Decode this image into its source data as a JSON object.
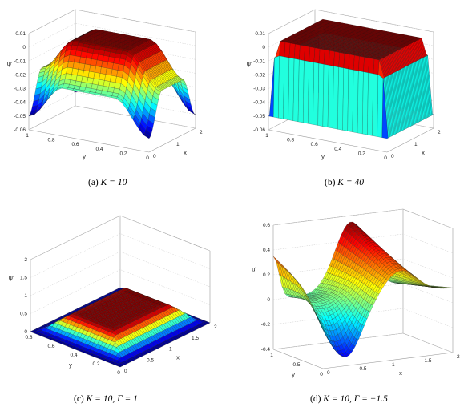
{
  "captions": {
    "a": {
      "label": "(a)",
      "math": "K = 10"
    },
    "b": {
      "label": "(b)",
      "math": "K = 40"
    },
    "c": {
      "label": "(c)",
      "math": "K = 10, Γ = 1"
    },
    "d": {
      "label": "(d)",
      "math": "K = 10, Γ = −1.5"
    }
  },
  "chart_data": [
    {
      "id": "a",
      "type": "surface3d",
      "zlabel": "ψ'",
      "xlabel": "x",
      "ylabel": "y",
      "xlim": [
        0,
        2
      ],
      "ylim": [
        0,
        1
      ],
      "zlim": [
        -0.06,
        0.01
      ],
      "zticks": [
        "0.01",
        "0",
        "-0.01",
        "-0.02",
        "-0.03",
        "-0.04",
        "-0.05",
        "-0.06"
      ],
      "yticks": [
        "1",
        "0.8",
        "0.6",
        "0.4",
        "0.2",
        "0"
      ],
      "xticks": [
        "0",
        "1",
        "2"
      ],
      "z_range_shown": [
        -0.05,
        0.005
      ]
    },
    {
      "id": "b",
      "type": "surface3d",
      "zlabel": "ψ'",
      "xlabel": "x",
      "ylabel": "y",
      "xlim": [
        0,
        2
      ],
      "ylim": [
        0,
        1
      ],
      "zlim": [
        -0.06,
        0.01
      ],
      "zticks": [
        "0.01",
        "0",
        "-0.01",
        "-0.02",
        "-0.03",
        "-0.04",
        "-0.05",
        "-0.06"
      ],
      "yticks": [
        "1",
        "0.8",
        "0.6",
        "0.4",
        "0.2",
        "0"
      ],
      "xticks": [
        "0",
        "1",
        "2"
      ],
      "z_range_shown": [
        -0.05,
        0.005
      ]
    },
    {
      "id": "c",
      "type": "surface3d",
      "zlabel": "ψ'",
      "xlabel": "x",
      "ylabel": "y",
      "xlim": [
        0,
        2
      ],
      "ylim": [
        0,
        1
      ],
      "zlim": [
        0,
        2
      ],
      "zticks": [
        "2",
        "1.5",
        "1",
        "0.5",
        "0"
      ],
      "yticks": [
        "0.8",
        "0.6",
        "0.4",
        "0.2",
        "0"
      ],
      "xticks": [
        "0",
        "0.5",
        "1",
        "1.5",
        "2"
      ],
      "z_range_shown": [
        0,
        0.5
      ]
    },
    {
      "id": "d",
      "type": "surface3d",
      "zlabel": "u'",
      "xlabel": "x",
      "ylabel": "y",
      "xlim": [
        0,
        2
      ],
      "ylim": [
        0,
        1
      ],
      "zlim": [
        -0.4,
        0.6
      ],
      "zticks": [
        "0.6",
        "0.4",
        "0.2",
        "0",
        "-0.2",
        "-0.4"
      ],
      "yticks": [
        "1",
        "0.5",
        "0"
      ],
      "xticks": [
        "0",
        "0.5",
        "1",
        "1.5",
        "2"
      ],
      "z_range_shown": [
        -0.45,
        0.55
      ]
    }
  ]
}
